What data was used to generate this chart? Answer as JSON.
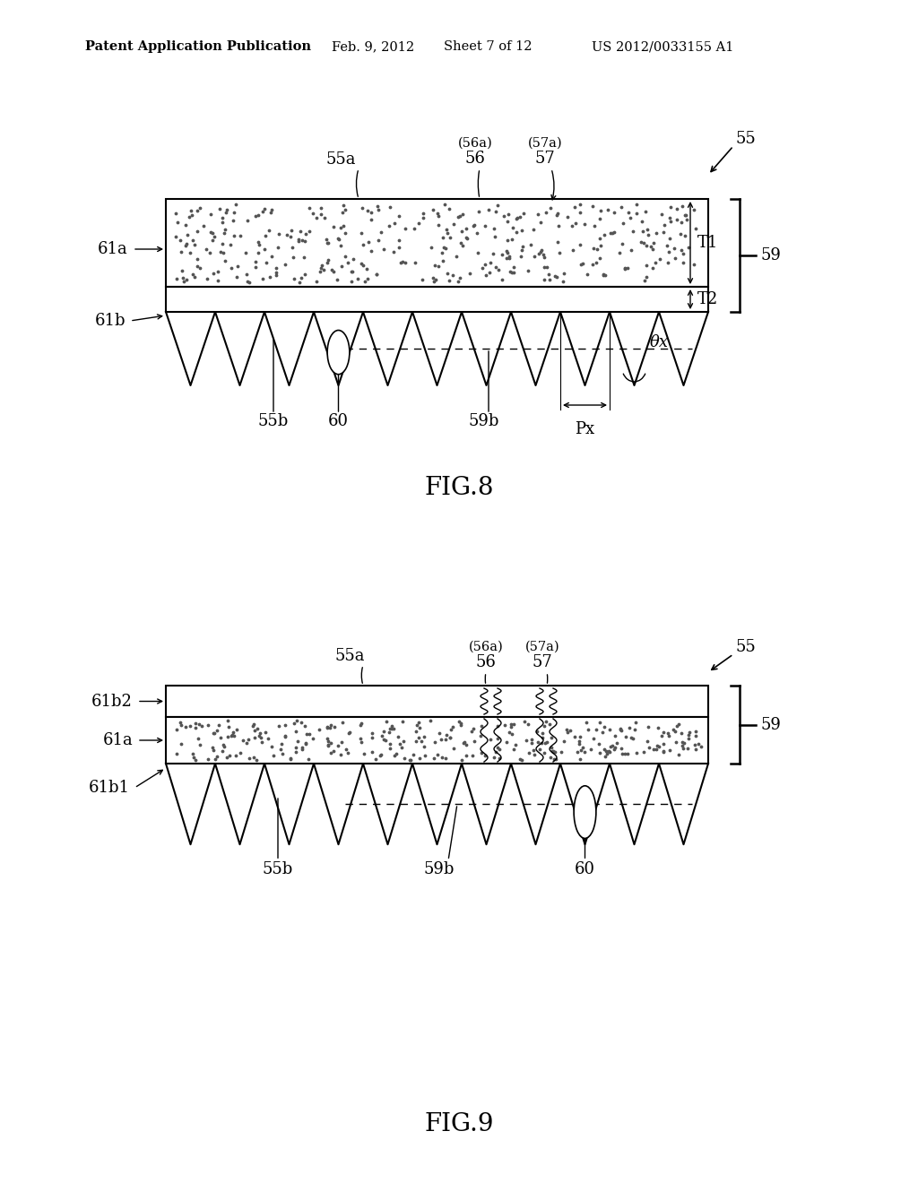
{
  "bg_color": "#ffffff",
  "header_text": "Patent Application Publication",
  "header_date": "Feb. 9, 2012",
  "header_sheet": "Sheet 7 of 12",
  "header_patent": "US 2012/0033155 A1",
  "fig8_title": "FIG.8",
  "fig9_title": "FIG.9",
  "line_color": "#000000",
  "fig8": {
    "label_55": "55",
    "label_55a": "55a",
    "label_55b": "55b",
    "label_56a": "(56a)",
    "label_56": "56",
    "label_57a": "(57a)",
    "label_57": "57",
    "label_59": "59",
    "label_59b": "59b",
    "label_60": "60",
    "label_61a": "61a",
    "label_61b": "61b",
    "label_T1": "T1",
    "label_T2": "T2",
    "label_Px": "Px",
    "label_theta": "θx"
  },
  "fig9": {
    "label_55": "55",
    "label_55a": "55a",
    "label_55b": "55b",
    "label_56a": "(56a)",
    "label_56": "56",
    "label_57a": "(57a)",
    "label_57": "57",
    "label_59": "59",
    "label_59b": "59b",
    "label_60": "60",
    "label_61a": "61a",
    "label_61b1": "61b1",
    "label_61b2": "61b2"
  }
}
